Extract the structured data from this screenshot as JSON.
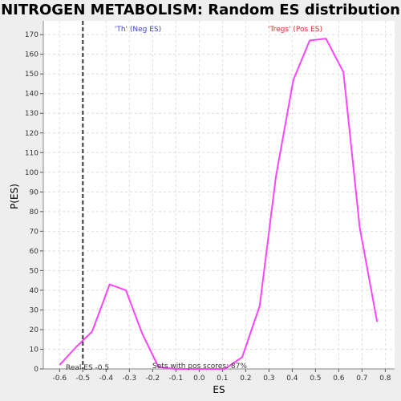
{
  "chart_data": {
    "type": "line",
    "title": "NITROGEN METABOLISM: Random ES distribution",
    "xlabel": "ES",
    "ylabel": "P(ES)",
    "xlim": [
      -0.67,
      0.84
    ],
    "ylim": [
      0,
      177
    ],
    "xticks": [
      -0.6,
      -0.5,
      -0.4,
      -0.3,
      -0.2,
      -0.1,
      0.0,
      0.1,
      0.2,
      0.3,
      0.4,
      0.5,
      0.6,
      0.7,
      0.8
    ],
    "xtick_labels": [
      "-0.6",
      "-0.5",
      "-0.4",
      "-0.3",
      "-0.2",
      "-0.1",
      "0.0",
      "0.1",
      "0.2",
      "0.3",
      "0.4",
      "0.5",
      "0.6",
      "0.7",
      "0.8"
    ],
    "yticks": [
      0,
      10,
      20,
      30,
      40,
      50,
      60,
      70,
      80,
      90,
      100,
      110,
      120,
      130,
      140,
      150,
      160,
      170
    ],
    "grid": true,
    "series": [
      {
        "color": "#ff44ff",
        "x": [
          -0.6,
          -0.53,
          -0.46,
          -0.385,
          -0.315,
          -0.245,
          -0.175,
          -0.105,
          -0.035,
          0.035,
          0.11,
          0.185,
          0.26,
          0.33,
          0.405,
          0.475,
          0.545,
          0.62,
          0.69,
          0.765
        ],
        "y": [
          2,
          11,
          19,
          43,
          40,
          18,
          1,
          0,
          0,
          0,
          0,
          6,
          32,
          98,
          147,
          167,
          168,
          151,
          72,
          24
        ]
      }
    ],
    "real_es": {
      "x": -0.5,
      "label": "Real ES -0.5",
      "color": "#333333"
    },
    "annotations": {
      "neg": {
        "text": "'Th' (Neg ES)",
        "color": "#4444cc"
      },
      "pos": {
        "text": "'Tregs' (Pos ES)",
        "color": "#dd3333"
      },
      "bottom": {
        "text": "Sets with pos scores: 87%"
      }
    }
  }
}
